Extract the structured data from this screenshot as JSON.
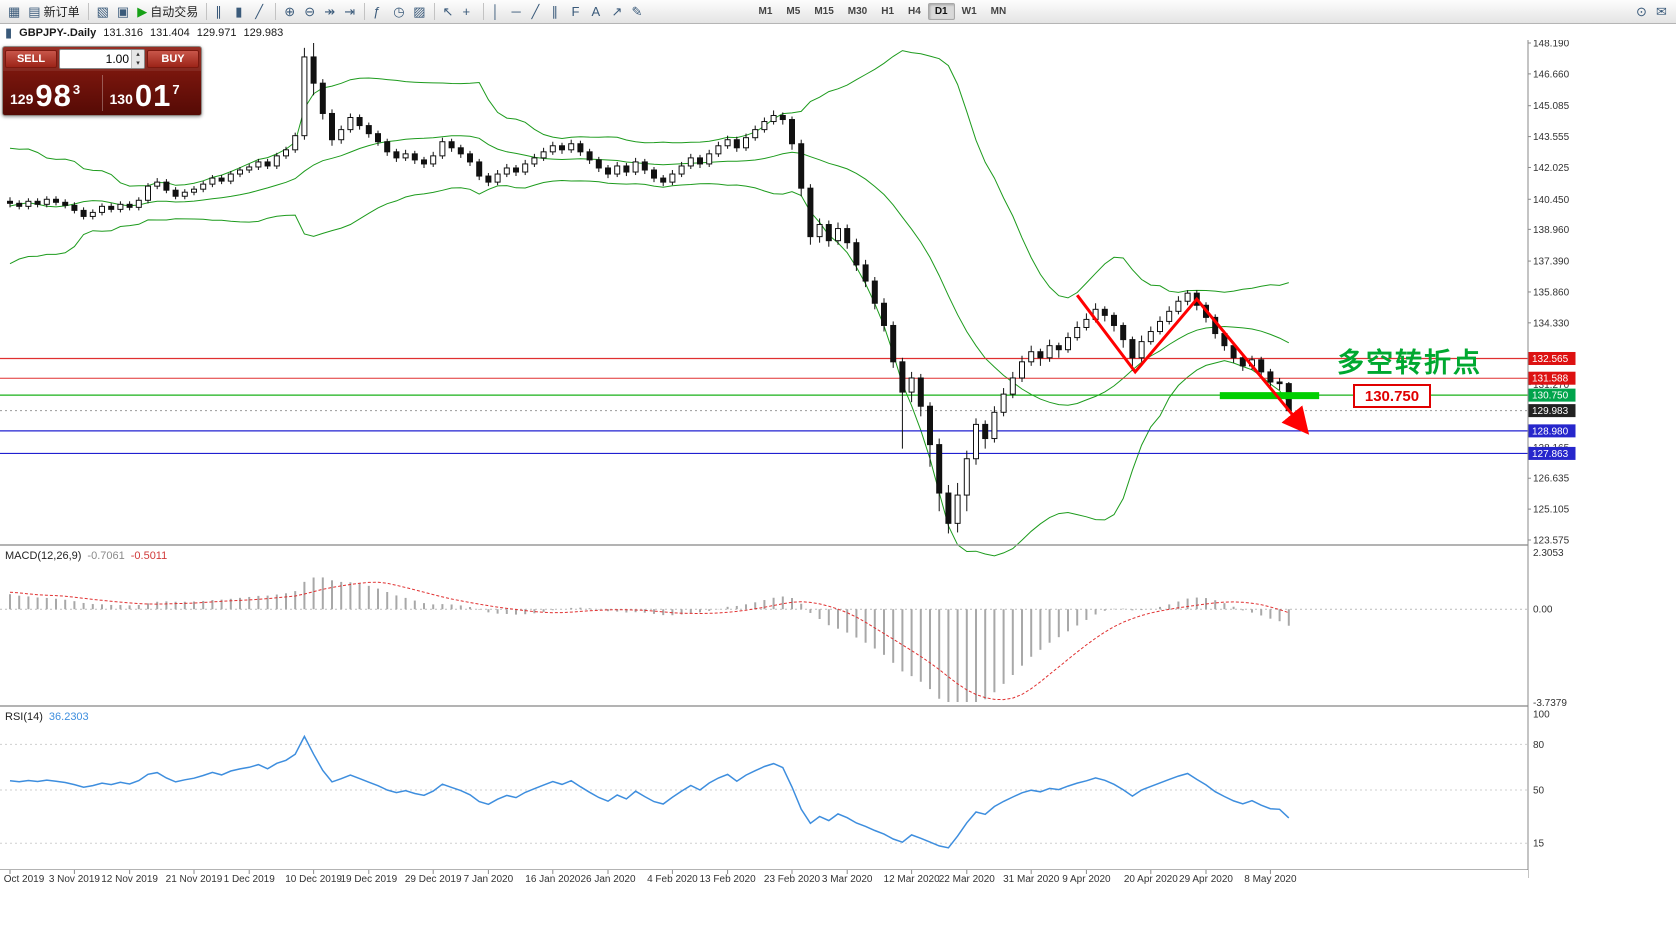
{
  "icons": {
    "new_chart": "▦",
    "new_order": "▤",
    "profiles": "▧",
    "cascade": "▣",
    "autotrade_play": "▶",
    "bars_chart": "∥",
    "candles_chart": "▮",
    "line_chart": "╱",
    "zoom_in": "⊕",
    "zoom_out": "⊖",
    "auto_scroll": "↠",
    "chart_shift": "⇥",
    "indicators": "ƒ",
    "periods": "◷",
    "templates": "▨",
    "cursor": "↖",
    "crosshair": "+",
    "vline": "│",
    "hline": "─",
    "trendline": "╱",
    "channel": "∥",
    "fibonacci": "F",
    "text_tool": "A",
    "arrow_tool": "↗",
    "draw_tool": "✎",
    "spin_up": "▴",
    "spin_down": "▾",
    "search": "⊙",
    "chat": "✉",
    "chart_tab": "▮"
  },
  "toolbar": {
    "groups": [
      {
        "items": [
          {
            "name": "new-chart-button",
            "icon": "new_chart"
          },
          {
            "name": "new-order-button",
            "icon": "new_order",
            "label": "新订单"
          }
        ]
      },
      {
        "items": [
          {
            "name": "profiles-button",
            "icon": "profiles"
          },
          {
            "name": "cascade-windows-button",
            "icon": "cascade"
          },
          {
            "name": "autotrade-button",
            "icon": "autotrade_play",
            "icon_color": "#15a015",
            "label": "自动交易"
          }
        ]
      },
      {
        "items": [
          {
            "name": "bar-chart-button",
            "icon": "bars_chart"
          },
          {
            "name": "candlestick-chart-button",
            "icon": "candles_chart"
          },
          {
            "name": "line-chart-button",
            "icon": "line_chart"
          }
        ]
      },
      {
        "items": [
          {
            "name": "zoom-in-button",
            "icon": "zoom_in"
          },
          {
            "name": "zoom-out-button",
            "icon": "zoom_out"
          },
          {
            "name": "auto-scroll-button",
            "icon": "auto_scroll"
          },
          {
            "name": "chart-shift-button",
            "icon": "chart_shift"
          }
        ]
      },
      {
        "items": [
          {
            "name": "indicators-button",
            "icon": "indicators"
          },
          {
            "name": "periods-button",
            "icon": "periods"
          },
          {
            "name": "templates-button",
            "icon": "templates"
          }
        ]
      },
      {
        "items": [
          {
            "name": "cursor-button",
            "icon": "cursor"
          },
          {
            "name": "crosshair-button",
            "icon": "crosshair"
          }
        ]
      },
      {
        "items": [
          {
            "name": "vline-button",
            "icon": "vline"
          },
          {
            "name": "hline-button",
            "icon": "hline"
          },
          {
            "name": "trendline-button",
            "icon": "trendline"
          },
          {
            "name": "channel-button",
            "icon": "channel"
          },
          {
            "name": "fibonacci-button",
            "icon": "fibonacci"
          },
          {
            "name": "text-button",
            "icon": "text_tool"
          },
          {
            "name": "arrows-button",
            "icon": "arrow_tool"
          },
          {
            "name": "shapes-button",
            "icon": "draw_tool"
          }
        ]
      }
    ],
    "timeframes": [
      "M1",
      "M5",
      "M15",
      "M30",
      "H1",
      "H4",
      "D1",
      "W1",
      "MN"
    ],
    "active_timeframe": "D1",
    "right_icons": [
      {
        "name": "search-button",
        "icon": "search"
      },
      {
        "name": "community-button",
        "icon": "chat"
      }
    ]
  },
  "chart_header": {
    "symbol": "GBPJPY-.Daily",
    "open": "131.316",
    "high": "131.404",
    "low": "129.971",
    "close": "129.983"
  },
  "trade_panel": {
    "sell_label": "SELL",
    "buy_label": "BUY",
    "volume": "1.00",
    "sell_price_prefix": "129",
    "sell_price_big": "98",
    "sell_price_sup": "3",
    "buy_price_prefix": "130",
    "buy_price_big": "01",
    "buy_price_sup": "7"
  },
  "annotations": {
    "turning_point_text": "多空转折点",
    "price_label": "130.750"
  },
  "indicators": {
    "macd": {
      "label": "MACD(12,26,9)",
      "main_value": "-0.7061",
      "signal_value": "-0.5011",
      "axis": [
        "2.3053",
        "0.00",
        "-3.7379"
      ]
    },
    "rsi": {
      "label": "RSI(14)",
      "value": "36.2303",
      "levels": [
        100,
        80,
        50,
        15
      ]
    }
  },
  "chart_data": {
    "type": "candlestick",
    "symbol": "GBPJPY",
    "timeframe": "Daily",
    "ylim": [
      123.575,
      148.19
    ],
    "price_ticks": [
      "148.190",
      "146.660",
      "145.085",
      "143.555",
      "142.025",
      "140.450",
      "138.960",
      "137.390",
      "135.860",
      "134.330",
      "131.270",
      "128.165",
      "126.635",
      "125.105",
      "123.575"
    ],
    "price_tags": [
      {
        "label": "132.565",
        "price": 132.565,
        "color": "#dd1111"
      },
      {
        "label": "131.588",
        "price": 131.588,
        "color": "#dd1111"
      },
      {
        "label": "130.750",
        "price": 130.75,
        "color": "#00a44c"
      },
      {
        "label": "129.983",
        "price": 129.983,
        "color": "#222222"
      },
      {
        "label": "128.980",
        "price": 128.98,
        "color": "#2626cc"
      },
      {
        "label": "127.863",
        "price": 127.863,
        "color": "#2626cc"
      }
    ],
    "hlines": [
      {
        "price": 132.565,
        "color": "#e03030",
        "width": 1.3
      },
      {
        "price": 131.588,
        "color": "#e03030",
        "width": 1
      },
      {
        "price": 130.75,
        "color": "#18b018",
        "width": 1.2
      },
      {
        "price": 128.98,
        "color": "#2020d0",
        "width": 1.2
      },
      {
        "price": 127.863,
        "color": "#2020d0",
        "width": 1.2
      }
    ],
    "current_price": 129.983,
    "bollinger": {
      "period": 20,
      "deviation": 2
    },
    "bollinger_seed": [
      137.5,
      138.2,
      139.0,
      141.8,
      142.3,
      141.0,
      139.2,
      138.0,
      137.2,
      138.8,
      140.5,
      141.6,
      142.2,
      141.2,
      139.6,
      138.9,
      139.8,
      140.9,
      141.3,
      140.6
    ],
    "x_labels": [
      {
        "label": "Oct 2019",
        "i": 0
      },
      {
        "label": "3 Nov 2019",
        "i": 7
      },
      {
        "label": "12 Nov 2019",
        "i": 13
      },
      {
        "label": "21 Nov 2019",
        "i": 20
      },
      {
        "label": "1 Dec 2019",
        "i": 26
      },
      {
        "label": "10 Dec 2019",
        "i": 33
      },
      {
        "label": "19 Dec 2019",
        "i": 39
      },
      {
        "label": "29 Dec 2019",
        "i": 46
      },
      {
        "label": "7 Jan 2020",
        "i": 52
      },
      {
        "label": "16 Jan 2020",
        "i": 59
      },
      {
        "label": "26 Jan 2020",
        "i": 65
      },
      {
        "label": "4 Feb 2020",
        "i": 72
      },
      {
        "label": "13 Feb 2020",
        "i": 78
      },
      {
        "label": "23 Feb 2020",
        "i": 85
      },
      {
        "label": "3 Mar 2020",
        "i": 91
      },
      {
        "label": "12 Mar 2020",
        "i": 98
      },
      {
        "label": "22 Mar 2020",
        "i": 104
      },
      {
        "label": "31 Mar 2020",
        "i": 111
      },
      {
        "label": "9 Apr 2020",
        "i": 117
      },
      {
        "label": "20 Apr 2020",
        "i": 124
      },
      {
        "label": "29 Apr 2020",
        "i": 130
      },
      {
        "label": "8 May 2020",
        "i": 137
      }
    ],
    "trend_arrow": [
      [
        116,
        135.7
      ],
      [
        122.3,
        131.9
      ],
      [
        129,
        135.5
      ],
      [
        141,
        128.9
      ]
    ],
    "support_bar": {
      "i1": 131.5,
      "i2": 142.3,
      "price": 130.75
    },
    "candles": [
      [
        140.35,
        140.55,
        140.05,
        140.25
      ],
      [
        140.25,
        140.4,
        139.95,
        140.1
      ],
      [
        140.1,
        140.5,
        139.95,
        140.35
      ],
      [
        140.35,
        140.5,
        140.05,
        140.2
      ],
      [
        140.2,
        140.6,
        140.05,
        140.45
      ],
      [
        140.45,
        140.6,
        140.15,
        140.3
      ],
      [
        140.3,
        140.45,
        140.0,
        140.15
      ],
      [
        140.15,
        140.3,
        139.75,
        139.9
      ],
      [
        139.9,
        140.05,
        139.45,
        139.6
      ],
      [
        139.6,
        139.95,
        139.45,
        139.8
      ],
      [
        139.8,
        140.25,
        139.65,
        140.1
      ],
      [
        140.1,
        140.25,
        139.8,
        139.95
      ],
      [
        139.95,
        140.35,
        139.8,
        140.2
      ],
      [
        140.2,
        140.35,
        139.9,
        140.05
      ],
      [
        140.05,
        140.55,
        139.9,
        140.4
      ],
      [
        140.4,
        141.25,
        140.25,
        141.1
      ],
      [
        141.1,
        141.5,
        140.95,
        141.3
      ],
      [
        141.3,
        141.45,
        140.75,
        140.9
      ],
      [
        140.9,
        141.05,
        140.45,
        140.6
      ],
      [
        140.6,
        140.95,
        140.45,
        140.8
      ],
      [
        140.8,
        141.1,
        140.65,
        140.95
      ],
      [
        140.95,
        141.35,
        140.8,
        141.2
      ],
      [
        141.2,
        141.65,
        141.05,
        141.5
      ],
      [
        141.5,
        141.65,
        141.2,
        141.35
      ],
      [
        141.35,
        141.85,
        141.2,
        141.7
      ],
      [
        141.7,
        142.05,
        141.55,
        141.9
      ],
      [
        141.9,
        142.2,
        141.75,
        142.05
      ],
      [
        142.05,
        142.45,
        141.9,
        142.3
      ],
      [
        142.3,
        142.45,
        141.95,
        142.1
      ],
      [
        142.1,
        142.75,
        141.95,
        142.6
      ],
      [
        142.6,
        143.05,
        142.45,
        142.9
      ],
      [
        142.9,
        143.75,
        142.75,
        143.6
      ],
      [
        143.6,
        147.95,
        143.4,
        147.5
      ],
      [
        147.5,
        148.19,
        145.6,
        146.2
      ],
      [
        146.2,
        146.4,
        144.4,
        144.7
      ],
      [
        144.7,
        144.9,
        143.1,
        143.4
      ],
      [
        143.4,
        144.1,
        143.2,
        143.9
      ],
      [
        143.9,
        144.7,
        143.75,
        144.5
      ],
      [
        144.5,
        144.65,
        143.9,
        144.1
      ],
      [
        144.1,
        144.25,
        143.5,
        143.7
      ],
      [
        143.7,
        143.85,
        143.1,
        143.3
      ],
      [
        143.3,
        143.45,
        142.6,
        142.8
      ],
      [
        142.8,
        142.95,
        142.3,
        142.5
      ],
      [
        142.5,
        142.9,
        142.35,
        142.7
      ],
      [
        142.7,
        142.85,
        142.2,
        142.4
      ],
      [
        142.4,
        142.55,
        142.0,
        142.2
      ],
      [
        142.2,
        142.8,
        142.05,
        142.6
      ],
      [
        142.6,
        143.5,
        142.45,
        143.3
      ],
      [
        143.3,
        143.45,
        142.8,
        143.0
      ],
      [
        143.0,
        143.15,
        142.5,
        142.7
      ],
      [
        142.7,
        142.85,
        142.1,
        142.3
      ],
      [
        142.3,
        142.45,
        141.4,
        141.6
      ],
      [
        141.6,
        141.75,
        141.1,
        141.3
      ],
      [
        141.3,
        141.9,
        141.15,
        141.7
      ],
      [
        141.7,
        142.2,
        141.55,
        142.0
      ],
      [
        142.0,
        142.15,
        141.6,
        141.8
      ],
      [
        141.8,
        142.4,
        141.65,
        142.2
      ],
      [
        142.2,
        142.7,
        142.05,
        142.5
      ],
      [
        142.5,
        143.0,
        142.35,
        142.8
      ],
      [
        142.8,
        143.3,
        142.65,
        143.1
      ],
      [
        143.1,
        143.25,
        142.7,
        142.9
      ],
      [
        142.9,
        143.4,
        142.75,
        143.2
      ],
      [
        143.2,
        143.35,
        142.6,
        142.8
      ],
      [
        142.8,
        142.95,
        142.2,
        142.4
      ],
      [
        142.4,
        142.55,
        141.8,
        142.0
      ],
      [
        142.0,
        142.15,
        141.5,
        141.7
      ],
      [
        141.7,
        142.3,
        141.55,
        142.1
      ],
      [
        142.1,
        142.25,
        141.6,
        141.8
      ],
      [
        141.8,
        142.5,
        141.65,
        142.3
      ],
      [
        142.3,
        142.45,
        141.7,
        141.9
      ],
      [
        141.9,
        142.05,
        141.3,
        141.5
      ],
      [
        141.5,
        141.65,
        141.1,
        141.3
      ],
      [
        141.3,
        141.9,
        141.15,
        141.7
      ],
      [
        141.7,
        142.3,
        141.55,
        142.1
      ],
      [
        142.1,
        142.7,
        141.95,
        142.5
      ],
      [
        142.5,
        142.65,
        142.0,
        142.2
      ],
      [
        142.2,
        142.9,
        142.05,
        142.7
      ],
      [
        142.7,
        143.3,
        142.55,
        143.1
      ],
      [
        143.1,
        143.6,
        142.95,
        143.4
      ],
      [
        143.4,
        143.55,
        142.8,
        143.0
      ],
      [
        143.0,
        143.7,
        142.85,
        143.5
      ],
      [
        143.5,
        144.1,
        143.35,
        143.9
      ],
      [
        143.9,
        144.5,
        143.75,
        144.3
      ],
      [
        144.3,
        144.85,
        144.15,
        144.6
      ],
      [
        144.6,
        144.75,
        144.15,
        144.4
      ],
      [
        144.4,
        144.55,
        142.9,
        143.2
      ],
      [
        143.2,
        143.4,
        140.6,
        141.0
      ],
      [
        141.0,
        141.2,
        138.2,
        138.6
      ],
      [
        138.6,
        139.5,
        138.3,
        139.2
      ],
      [
        139.2,
        139.4,
        138.1,
        138.4
      ],
      [
        138.4,
        139.3,
        138.2,
        139.0
      ],
      [
        139.0,
        139.2,
        138.0,
        138.3
      ],
      [
        138.3,
        138.5,
        136.9,
        137.2
      ],
      [
        137.2,
        137.45,
        136.1,
        136.4
      ],
      [
        136.4,
        136.6,
        135.0,
        135.3
      ],
      [
        135.3,
        135.55,
        133.9,
        134.2
      ],
      [
        134.2,
        134.4,
        132.1,
        132.4
      ],
      [
        132.4,
        132.6,
        128.1,
        130.9
      ],
      [
        130.9,
        131.9,
        130.4,
        131.6
      ],
      [
        131.6,
        131.8,
        129.7,
        130.2
      ],
      [
        130.2,
        130.4,
        127.2,
        128.3
      ],
      [
        128.3,
        128.6,
        125.0,
        125.9
      ],
      [
        125.9,
        126.3,
        123.9,
        124.4
      ],
      [
        124.4,
        126.4,
        123.95,
        125.8
      ],
      [
        125.8,
        128.0,
        125.0,
        127.6
      ],
      [
        127.6,
        129.6,
        127.3,
        129.3
      ],
      [
        129.3,
        129.5,
        128.1,
        128.6
      ],
      [
        128.6,
        130.2,
        128.4,
        129.9
      ],
      [
        129.9,
        131.1,
        129.7,
        130.8
      ],
      [
        130.8,
        131.9,
        130.6,
        131.6
      ],
      [
        131.6,
        132.7,
        131.4,
        132.4
      ],
      [
        132.4,
        133.2,
        132.2,
        132.9
      ],
      [
        132.9,
        133.05,
        132.2,
        132.6
      ],
      [
        132.6,
        133.5,
        132.4,
        133.2
      ],
      [
        133.2,
        133.35,
        132.6,
        133.0
      ],
      [
        133.0,
        133.85,
        132.85,
        133.6
      ],
      [
        133.6,
        134.4,
        133.45,
        134.1
      ],
      [
        134.1,
        134.8,
        133.95,
        134.5
      ],
      [
        134.5,
        135.3,
        134.35,
        135.0
      ],
      [
        135.0,
        135.15,
        134.4,
        134.7
      ],
      [
        134.7,
        134.85,
        133.9,
        134.2
      ],
      [
        134.2,
        134.35,
        133.1,
        133.5
      ],
      [
        133.5,
        133.65,
        131.95,
        132.6
      ],
      [
        132.6,
        133.7,
        132.4,
        133.4
      ],
      [
        133.4,
        134.15,
        133.25,
        133.9
      ],
      [
        133.9,
        134.65,
        133.75,
        134.4
      ],
      [
        134.4,
        135.15,
        134.25,
        134.9
      ],
      [
        134.9,
        135.65,
        134.75,
        135.4
      ],
      [
        135.4,
        135.95,
        135.2,
        135.8
      ],
      [
        135.8,
        135.95,
        134.95,
        135.2
      ],
      [
        135.2,
        135.35,
        134.35,
        134.6
      ],
      [
        134.6,
        134.75,
        133.55,
        133.8
      ],
      [
        133.8,
        133.95,
        132.95,
        133.2
      ],
      [
        133.2,
        133.35,
        132.35,
        132.6
      ],
      [
        132.6,
        132.75,
        131.95,
        132.2
      ],
      [
        132.2,
        132.7,
        132.0,
        132.5
      ],
      [
        132.5,
        132.65,
        131.65,
        131.9
      ],
      [
        131.9,
        132.05,
        131.15,
        131.4
      ],
      [
        131.4,
        131.6,
        131.0,
        131.32
      ],
      [
        131.32,
        131.4,
        129.97,
        129.98
      ]
    ]
  }
}
